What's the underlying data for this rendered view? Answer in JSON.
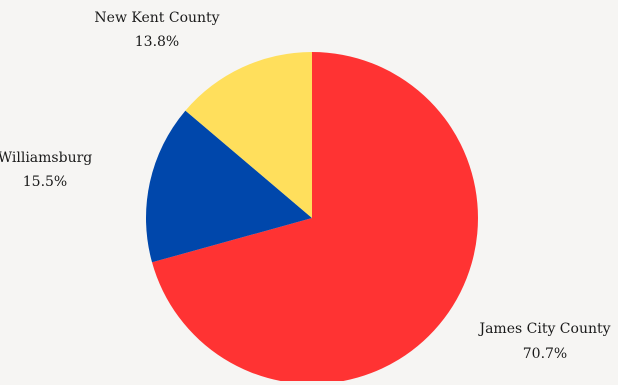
{
  "chart_data": {
    "type": "pie",
    "start_angle_deg": 0,
    "direction": "clockwise",
    "slices": [
      {
        "label": "James City County",
        "value": 70.7,
        "display": "70.7%",
        "color": "#ff3333"
      },
      {
        "label": "Williamsburg",
        "value": 15.5,
        "display": "15.5%",
        "color": "#0047ab"
      },
      {
        "label": "New Kent County",
        "value": 13.8,
        "display": "13.8%",
        "color": "#ffdf5c"
      }
    ],
    "title": ""
  }
}
